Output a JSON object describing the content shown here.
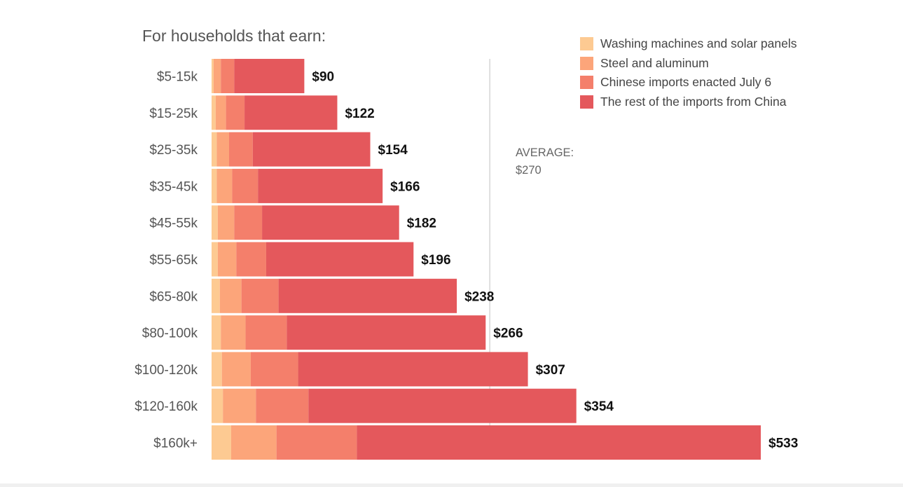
{
  "heading": "For households that earn:",
  "average": {
    "label": "AVERAGE:",
    "value_label": "$270",
    "value": 270
  },
  "chart_data": {
    "type": "bar",
    "orientation": "horizontal",
    "stacked": true,
    "title": "",
    "xlabel": "",
    "ylabel": "For households that earn:",
    "xlim": [
      0,
      533
    ],
    "grid": false,
    "legend_position": "top-right",
    "categories": [
      "$5-15k",
      "$15-25k",
      "$25-35k",
      "$35-45k",
      "$45-55k",
      "$55-65k",
      "$65-80k",
      "$80-100k",
      "$100-120k",
      "$120-160k",
      "$160k+"
    ],
    "totals": [
      90,
      122,
      154,
      166,
      182,
      196,
      238,
      266,
      307,
      354,
      533
    ],
    "total_labels": [
      "$90",
      "$122",
      "$154",
      "$166",
      "$182",
      "$196",
      "$238",
      "$266",
      "$307",
      "$354",
      "$533"
    ],
    "series": [
      {
        "name": "Washing machines and solar panels",
        "color": "#fdca92",
        "values": [
          2,
          4,
          5,
          5,
          6,
          6,
          8,
          9,
          10,
          11,
          19
        ]
      },
      {
        "name": "Steel and aluminum",
        "color": "#fca57a",
        "values": [
          7,
          10,
          12,
          15,
          16,
          18,
          21,
          24,
          28,
          32,
          44
        ]
      },
      {
        "name": "Chinese imports enacted July 6",
        "color": "#f47f6b",
        "values": [
          13,
          18,
          23,
          25,
          27,
          29,
          36,
          40,
          46,
          51,
          78
        ]
      },
      {
        "name": "The rest of the imports from China",
        "color": "#e4585c",
        "values": [
          68,
          90,
          114,
          121,
          133,
          143,
          173,
          193,
          223,
          260,
          392
        ]
      }
    ]
  }
}
